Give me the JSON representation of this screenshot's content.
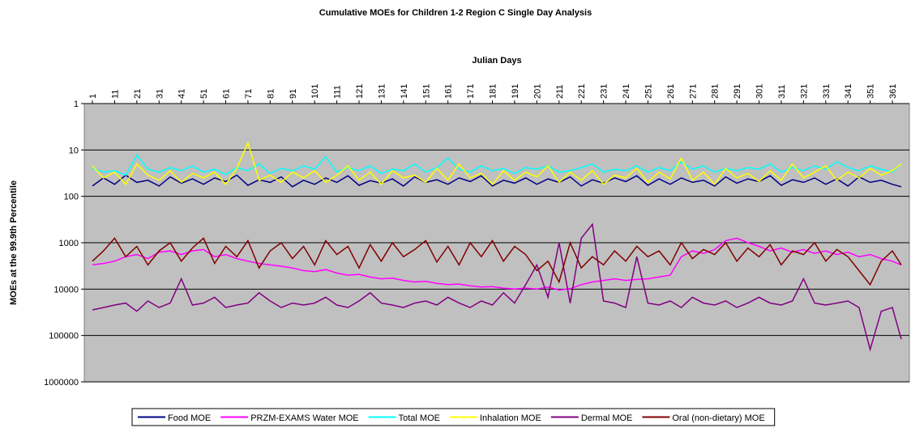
{
  "chart_data": {
    "type": "line",
    "title": "Cumulative MOEs for Children 1-2 Region C Single Day Analysis",
    "x_label": "Julian Days",
    "y_label": "MOEs at the 99.9th Percentile",
    "x": [
      1,
      6,
      11,
      16,
      21,
      26,
      31,
      36,
      41,
      46,
      51,
      56,
      61,
      66,
      71,
      76,
      81,
      86,
      91,
      96,
      101,
      106,
      111,
      116,
      121,
      126,
      131,
      136,
      141,
      146,
      151,
      156,
      161,
      166,
      171,
      176,
      181,
      186,
      191,
      196,
      201,
      206,
      211,
      216,
      221,
      226,
      231,
      236,
      241,
      246,
      251,
      256,
      261,
      266,
      271,
      276,
      281,
      286,
      291,
      296,
      301,
      306,
      311,
      316,
      321,
      326,
      331,
      336,
      341,
      346,
      351,
      356,
      361,
      365
    ],
    "xlim": [
      1,
      365
    ],
    "xticks": [
      1,
      11,
      21,
      31,
      41,
      51,
      61,
      71,
      81,
      91,
      101,
      111,
      121,
      131,
      141,
      151,
      161,
      171,
      181,
      191,
      201,
      211,
      221,
      231,
      241,
      251,
      261,
      271,
      281,
      291,
      301,
      311,
      321,
      331,
      341,
      351,
      361
    ],
    "ylim": [
      1,
      1000000
    ],
    "yticks": [
      1,
      10,
      100,
      1000,
      10000,
      100000,
      1000000
    ],
    "log_y": true,
    "y_reversed": true,
    "x_axis_position": "top",
    "grid": true,
    "plot_background": "#c0c0c0",
    "legend": "bottom",
    "series": [
      {
        "name": "Food MOE",
        "color": "#000080",
        "values": [
          60,
          40,
          55,
          35,
          50,
          45,
          60,
          38,
          52,
          42,
          55,
          40,
          48,
          35,
          58,
          44,
          50,
          38,
          62,
          45,
          55,
          40,
          50,
          36,
          58,
          46,
          52,
          42,
          60,
          38,
          50,
          44,
          55,
          40,
          48,
          36,
          60,
          45,
          52,
          40,
          55,
          42,
          50,
          38,
          60,
          44,
          52,
          40,
          48,
          36,
          58,
          42,
          55,
          40,
          50,
          45,
          60,
          38,
          52,
          42,
          48,
          36,
          58,
          44,
          50,
          40,
          55,
          42,
          60,
          38,
          50,
          45,
          55,
          62
        ]
      },
      {
        "name": "PRZM-EXAMS Water MOE",
        "color": "#ff00ff",
        "values": [
          3000,
          2800,
          2500,
          2000,
          1800,
          2200,
          1600,
          1500,
          1800,
          1500,
          1400,
          2000,
          1800,
          2200,
          2500,
          2800,
          3000,
          3200,
          3500,
          4000,
          4200,
          3800,
          4500,
          5000,
          4800,
          5500,
          6000,
          5800,
          6500,
          7000,
          6800,
          7500,
          8000,
          7800,
          8500,
          9000,
          8800,
          9500,
          10000,
          9500,
          10000,
          9000,
          10500,
          9800,
          8000,
          7000,
          6500,
          6000,
          6500,
          6200,
          6000,
          5500,
          5000,
          2000,
          1500,
          1700,
          1400,
          900,
          800,
          1000,
          1200,
          1500,
          1300,
          1600,
          1400,
          1700,
          1500,
          1800,
          1600,
          2000,
          1800,
          2200,
          2500,
          3000
        ]
      },
      {
        "name": "Total MOE",
        "color": "#00ffff",
        "values": [
          25,
          30,
          28,
          35,
          13,
          26,
          30,
          24,
          28,
          22,
          30,
          26,
          34,
          24,
          28,
          20,
          32,
          25,
          28,
          22,
          26,
          14,
          30,
          24,
          28,
          22,
          32,
          26,
          28,
          20,
          30,
          24,
          15,
          26,
          30,
          22,
          28,
          25,
          32,
          24,
          26,
          22,
          30,
          28,
          24,
          20,
          30,
          26,
          28,
          22,
          30,
          24,
          28,
          18,
          26,
          22,
          30,
          25,
          28,
          24,
          26,
          20,
          30,
          24,
          28,
          22,
          26,
          18,
          24,
          28,
          22,
          26,
          30,
          20
        ]
      },
      {
        "name": "Inhalation MOE",
        "color": "#ffff00",
        "values": [
          22,
          40,
          30,
          55,
          20,
          35,
          45,
          28,
          50,
          32,
          40,
          30,
          55,
          25,
          7,
          45,
          35,
          50,
          30,
          40,
          28,
          50,
          35,
          22,
          45,
          30,
          55,
          28,
          40,
          35,
          50,
          25,
          45,
          20,
          40,
          32,
          55,
          28,
          45,
          30,
          38,
          22,
          50,
          30,
          45,
          28,
          55,
          35,
          40,
          25,
          50,
          30,
          42,
          15,
          45,
          30,
          55,
          25,
          40,
          32,
          48,
          28,
          45,
          20,
          40,
          30,
          22,
          45,
          30,
          40,
          25,
          35,
          28,
          20
        ]
      },
      {
        "name": "Dermal MOE",
        "color": "#800080",
        "values": [
          28000,
          25000,
          22000,
          20000,
          30000,
          18000,
          25000,
          20000,
          6000,
          22000,
          20000,
          15000,
          25000,
          22000,
          20000,
          12000,
          18000,
          25000,
          20000,
          22000,
          20000,
          15000,
          22000,
          25000,
          18000,
          12000,
          20000,
          22000,
          25000,
          20000,
          18000,
          22000,
          15000,
          20000,
          25000,
          18000,
          22000,
          12000,
          20000,
          8000,
          3000,
          15000,
          1000,
          20000,
          800,
          400,
          18000,
          20000,
          25000,
          2000,
          20000,
          22000,
          18000,
          25000,
          15000,
          20000,
          22000,
          18000,
          25000,
          20000,
          15000,
          20000,
          22000,
          18000,
          6000,
          20000,
          22000,
          20000,
          18000,
          25000,
          200000,
          30000,
          25000,
          120000
        ]
      },
      {
        "name": "Oral (non-dietary) MOE",
        "color": "#800000",
        "values": [
          2500,
          1500,
          800,
          2000,
          1200,
          3000,
          1500,
          1000,
          2500,
          1300,
          800,
          2800,
          1200,
          2000,
          900,
          3500,
          1500,
          1000,
          2200,
          1200,
          3000,
          900,
          1800,
          1200,
          3500,
          1100,
          2500,
          1000,
          2000,
          1400,
          900,
          2600,
          1200,
          3000,
          1000,
          2000,
          900,
          2500,
          1200,
          1800,
          4000,
          2500,
          7000,
          1000,
          3500,
          2000,
          3000,
          1500,
          2500,
          1200,
          2000,
          1500,
          3000,
          1000,
          2200,
          1400,
          1800,
          1000,
          2500,
          1300,
          2000,
          1100,
          3000,
          1500,
          1800,
          1000,
          2500,
          1400,
          2000,
          4000,
          8000,
          2500,
          1500,
          3000
        ]
      }
    ]
  }
}
